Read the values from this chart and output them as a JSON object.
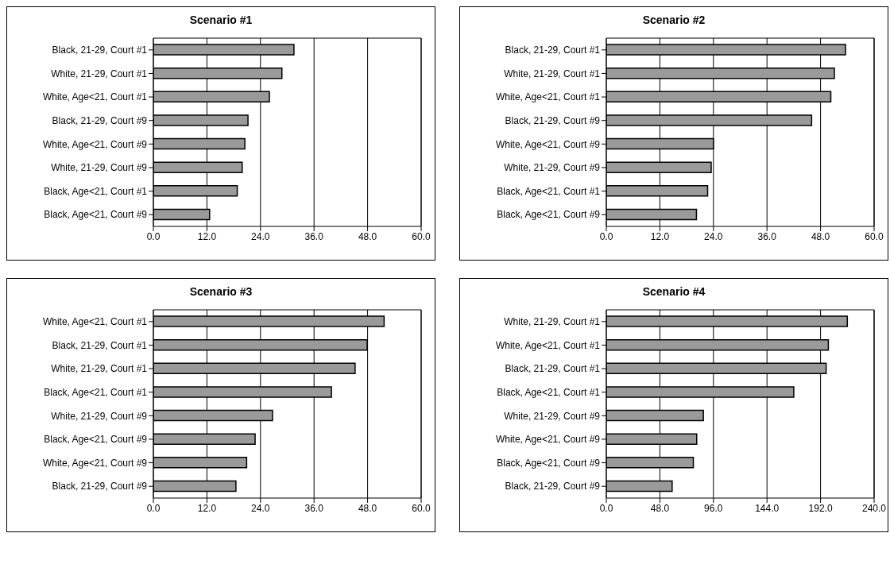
{
  "chart_data": [
    {
      "type": "bar",
      "orientation": "horizontal",
      "title": "Scenario #1",
      "categories": [
        "Black, 21-29, Court #1",
        "White, 21-29, Court #1",
        "White, Age<21, Court #1",
        "Black, 21-29, Court #9",
        "White, Age<21, Court #9",
        "White, 21-29, Court #9",
        "Black, Age<21, Court #1",
        "Black, Age<21, Court #9"
      ],
      "values": [
        31.5,
        28.8,
        26.0,
        21.2,
        20.5,
        19.9,
        18.8,
        12.6
      ],
      "color": "#9a9a9a",
      "xlim": [
        0,
        60
      ],
      "xticks": [
        {
          "value": 0,
          "label": "0.0"
        },
        {
          "value": 12,
          "label": "12.0"
        },
        {
          "value": 24,
          "label": "24.0"
        },
        {
          "value": 36,
          "label": "36.0"
        },
        {
          "value": 48,
          "label": "48.0"
        },
        {
          "value": 60,
          "label": "60.0"
        }
      ],
      "grid": "x",
      "legend": false
    },
    {
      "type": "bar",
      "orientation": "horizontal",
      "title": "Scenario #2",
      "categories": [
        "Black, 21-29, Court #1",
        "White, 21-29, Court #1",
        "White, Age<21, Court #1",
        "Black, 21-29, Court #9",
        "White, Age<21, Court #9",
        "White, 21-29, Court #9",
        "Black, Age<21, Court #1",
        "Black, Age<21, Court #9"
      ],
      "values": [
        53.6,
        51.1,
        50.3,
        46.0,
        24.0,
        23.5,
        22.7,
        20.2
      ],
      "color": "#9a9a9a",
      "xlim": [
        0,
        60
      ],
      "xticks": [
        {
          "value": 0,
          "label": "0.0"
        },
        {
          "value": 12,
          "label": "12.0"
        },
        {
          "value": 24,
          "label": "24.0"
        },
        {
          "value": 36,
          "label": "36.0"
        },
        {
          "value": 48,
          "label": "48.0"
        },
        {
          "value": 60,
          "label": "60.0"
        }
      ],
      "grid": "x",
      "legend": false
    },
    {
      "type": "bar",
      "orientation": "horizontal",
      "title": "Scenario #3",
      "categories": [
        "White, Age<21, Court #1",
        "Black, 21-29, Court #1",
        "White, 21-29, Court #1",
        "Black, Age<21, Court #1",
        "White, 21-29, Court #9",
        "Black, Age<21, Court #9",
        "White, Age<21, Court #9",
        "Black, 21-29, Court #9"
      ],
      "values": [
        51.7,
        47.9,
        45.2,
        39.9,
        26.7,
        22.8,
        20.9,
        18.5
      ],
      "color": "#9a9a9a",
      "xlim": [
        0,
        60
      ],
      "xticks": [
        {
          "value": 0,
          "label": "0.0"
        },
        {
          "value": 12,
          "label": "12.0"
        },
        {
          "value": 24,
          "label": "24.0"
        },
        {
          "value": 36,
          "label": "36.0"
        },
        {
          "value": 48,
          "label": "48.0"
        },
        {
          "value": 60,
          "label": "60.0"
        }
      ],
      "grid": "x",
      "legend": false
    },
    {
      "type": "bar",
      "orientation": "horizontal",
      "title": "Scenario #4",
      "categories": [
        "White, 21-29, Court #1",
        "White, Age<21, Court #1",
        "Black, 21-29, Court #1",
        "Black, Age<21, Court #1",
        "White, 21-29, Court #9",
        "White, Age<21, Court #9",
        "Black, Age<21, Court #9",
        "Black, 21-29, Court #9"
      ],
      "values": [
        216,
        199,
        197,
        168,
        87,
        81,
        78,
        59
      ],
      "color": "#9a9a9a",
      "xlim": [
        0,
        240
      ],
      "xticks": [
        {
          "value": 0,
          "label": "0.0"
        },
        {
          "value": 48,
          "label": "48.0"
        },
        {
          "value": 96,
          "label": "96.0"
        },
        {
          "value": 144,
          "label": "144.0"
        },
        {
          "value": 192,
          "label": "192.0"
        },
        {
          "value": 240,
          "label": "240.0"
        }
      ],
      "grid": "x",
      "legend": false
    }
  ]
}
